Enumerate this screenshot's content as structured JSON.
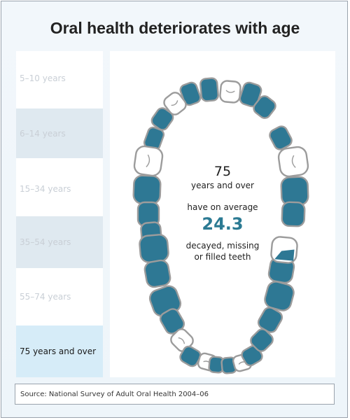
{
  "title": "Oral health deteriorates with age",
  "age_groups": [
    {
      "label": "5–10 years",
      "selected": false
    },
    {
      "label": "6–14 years",
      "selected": false
    },
    {
      "label": "15–34 years",
      "selected": false
    },
    {
      "label": "35–54 years",
      "selected": false
    },
    {
      "label": "55–74 years",
      "selected": false
    },
    {
      "label": "75 years and over",
      "selected": true
    }
  ],
  "center": {
    "age_value": "75",
    "age_caption": "years and over",
    "lead_text": "have on average",
    "value": "24.3",
    "caption_line1": "decayed, missing",
    "caption_line2": "or filled teeth"
  },
  "colors": {
    "tooth_filled": "#2e7894",
    "tooth_outline": "#9c9c9c",
    "value_text": "#2b7a93",
    "selected_row": "#d6ecf8"
  },
  "teeth": [
    {
      "id": "upper-1",
      "state": "filled"
    },
    {
      "id": "upper-2",
      "state": "empty"
    },
    {
      "id": "upper-3",
      "state": "filled"
    },
    {
      "id": "upper-4",
      "state": "filled"
    },
    {
      "id": "upper-5",
      "state": "empty"
    },
    {
      "id": "upper-6",
      "state": "filled"
    },
    {
      "id": "upper-7",
      "state": "filled"
    },
    {
      "id": "upper-8",
      "state": "filled"
    },
    {
      "id": "upper-9",
      "state": "filled"
    },
    {
      "id": "upper-10",
      "state": "empty"
    },
    {
      "id": "upper-11",
      "state": "filled"
    },
    {
      "id": "upper-12",
      "state": "filled"
    },
    {
      "id": "upper-13",
      "state": "filled"
    },
    {
      "id": "upper-14",
      "state": "empty"
    },
    {
      "id": "upper-15",
      "state": "filled"
    },
    {
      "id": "upper-16",
      "state": "filled"
    },
    {
      "id": "lower-1",
      "state": "filled"
    },
    {
      "id": "lower-2",
      "state": "filled"
    },
    {
      "id": "lower-3",
      "state": "filled"
    },
    {
      "id": "lower-4",
      "state": "filled"
    },
    {
      "id": "lower-5",
      "state": "empty"
    },
    {
      "id": "lower-6",
      "state": "filled"
    },
    {
      "id": "lower-7",
      "state": "empty"
    },
    {
      "id": "lower-8",
      "state": "filled"
    },
    {
      "id": "lower-9",
      "state": "filled"
    },
    {
      "id": "lower-10",
      "state": "empty"
    },
    {
      "id": "lower-11",
      "state": "filled"
    },
    {
      "id": "lower-12",
      "state": "filled"
    },
    {
      "id": "lower-13",
      "state": "filled"
    },
    {
      "id": "lower-14",
      "state": "filled"
    },
    {
      "id": "lower-15",
      "state": "half-filled"
    },
    {
      "id": "lower-16",
      "state": "filled"
    }
  ],
  "source": "Source: National Survey of Adult Oral Health 2004–06"
}
